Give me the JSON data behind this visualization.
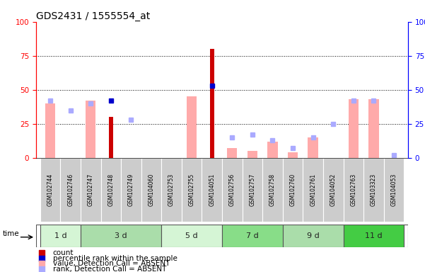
{
  "title": "GDS2431 / 1555554_at",
  "samples": [
    "GSM102744",
    "GSM102746",
    "GSM102747",
    "GSM102748",
    "GSM102749",
    "GSM104060",
    "GSM102753",
    "GSM102755",
    "GSM104051",
    "GSM102756",
    "GSM102757",
    "GSM102758",
    "GSM102760",
    "GSM102761",
    "GSM104052",
    "GSM102763",
    "GSM103323",
    "GSM104053"
  ],
  "time_groups": [
    {
      "label": "1 d",
      "indices": [
        0,
        1
      ],
      "color": "#d5f5d5"
    },
    {
      "label": "3 d",
      "indices": [
        2,
        3,
        4,
        5
      ],
      "color": "#aaddaa"
    },
    {
      "label": "5 d",
      "indices": [
        6,
        7,
        8
      ],
      "color": "#d5f5d5"
    },
    {
      "label": "7 d",
      "indices": [
        9,
        10,
        11
      ],
      "color": "#88dd88"
    },
    {
      "label": "9 d",
      "indices": [
        12,
        13,
        14
      ],
      "color": "#aaddaa"
    },
    {
      "label": "11 d",
      "indices": [
        15,
        16,
        17
      ],
      "color": "#44cc44"
    }
  ],
  "count_values": [
    null,
    null,
    null,
    30,
    null,
    null,
    null,
    null,
    80,
    null,
    null,
    null,
    null,
    null,
    null,
    null,
    null,
    null
  ],
  "percentile_rank_values": [
    null,
    null,
    null,
    42,
    null,
    null,
    null,
    null,
    53,
    null,
    null,
    null,
    null,
    null,
    null,
    null,
    null,
    null
  ],
  "value_absent": [
    40,
    null,
    42,
    null,
    null,
    null,
    null,
    45,
    null,
    7,
    5,
    12,
    4,
    15,
    null,
    43,
    43,
    null
  ],
  "rank_absent": [
    42,
    35,
    40,
    null,
    28,
    null,
    null,
    null,
    null,
    15,
    17,
    13,
    7,
    15,
    25,
    42,
    42,
    2
  ],
  "ylim": [
    0,
    100
  ],
  "grid_values": [
    25,
    50,
    75
  ],
  "count_color": "#cc0000",
  "percentile_color": "#0000cc",
  "value_absent_color": "#ffaaaa",
  "rank_absent_color": "#aaaaff",
  "sample_bg": "#cccccc",
  "plot_bg": "#ffffff"
}
